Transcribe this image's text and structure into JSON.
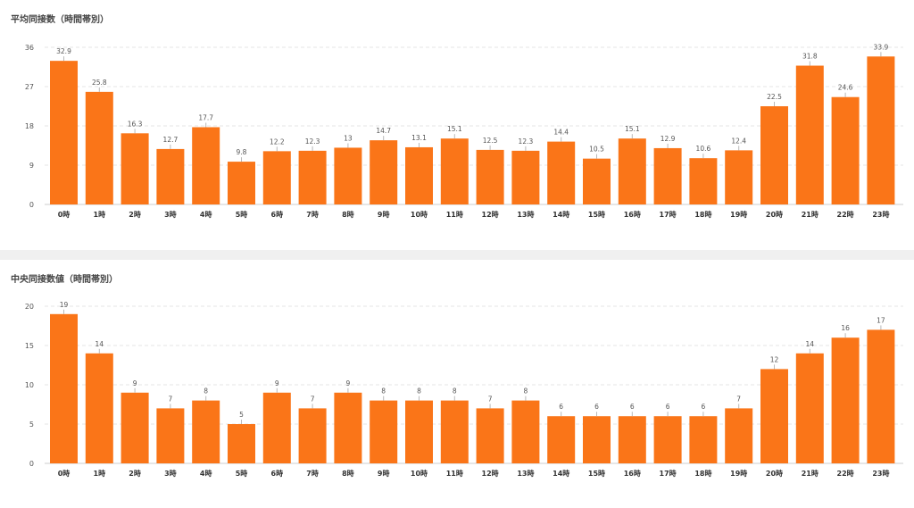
{
  "colors": {
    "bar": "#fa7518",
    "grid": "#e4e4e4",
    "axis": "#cccccc",
    "separator": "#f0f0f0"
  },
  "chart_data": [
    {
      "type": "bar",
      "title": "平均同接数（時間帯別）",
      "xlabel": "",
      "ylabel": "",
      "categories": [
        "0時",
        "1時",
        "2時",
        "3時",
        "4時",
        "5時",
        "6時",
        "7時",
        "8時",
        "9時",
        "10時",
        "11時",
        "12時",
        "13時",
        "14時",
        "15時",
        "16時",
        "17時",
        "18時",
        "19時",
        "20時",
        "21時",
        "22時",
        "23時"
      ],
      "values": [
        32.9,
        25.8,
        16.3,
        12.7,
        17.7,
        9.8,
        12.2,
        12.3,
        13,
        14.7,
        13.1,
        15.1,
        12.5,
        12.3,
        14.4,
        10.5,
        15.1,
        12.9,
        10.6,
        12.4,
        22.5,
        31.8,
        24.6,
        33.9
      ],
      "ylim": [
        0,
        36
      ],
      "yticks": [
        0,
        9,
        18,
        27,
        36
      ],
      "grid": true,
      "data_labels": true
    },
    {
      "type": "bar",
      "title": "中央同接数値（時間帯別）",
      "xlabel": "",
      "ylabel": "",
      "categories": [
        "0時",
        "1時",
        "2時",
        "3時",
        "4時",
        "5時",
        "6時",
        "7時",
        "8時",
        "9時",
        "10時",
        "11時",
        "12時",
        "13時",
        "14時",
        "15時",
        "16時",
        "17時",
        "18時",
        "19時",
        "20時",
        "21時",
        "22時",
        "23時"
      ],
      "values": [
        19,
        14,
        9,
        7,
        8,
        5,
        9,
        7,
        9,
        8,
        8,
        8,
        7,
        8,
        6,
        6,
        6,
        6,
        6,
        7,
        12,
        14,
        16,
        17
      ],
      "ylim": [
        0,
        20
      ],
      "yticks": [
        0,
        5,
        10,
        15,
        20
      ],
      "grid": true,
      "data_labels": true
    }
  ]
}
